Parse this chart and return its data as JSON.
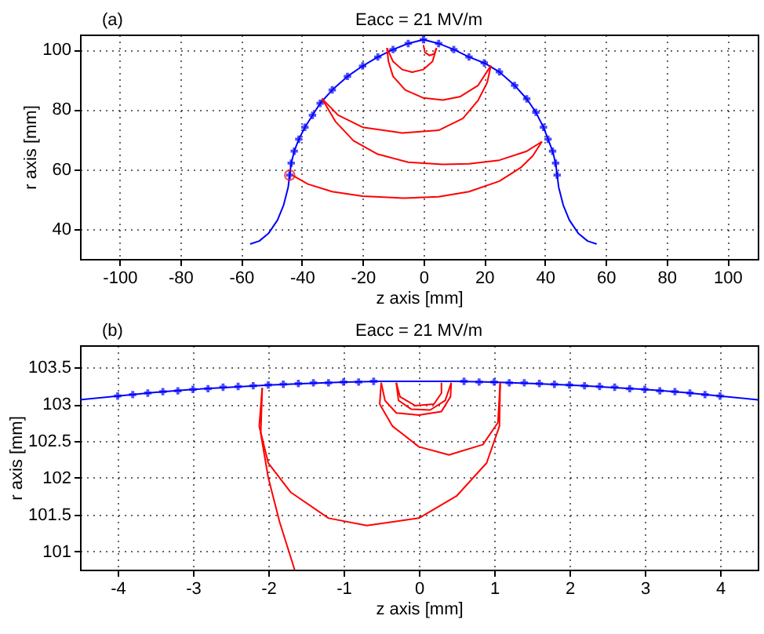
{
  "chart_data": [
    {
      "type": "line",
      "title": "Eacc = 21 MV/m",
      "xlabel": "z axis [mm]",
      "ylabel": "r axis [mm]",
      "annotations": [
        "(a)"
      ],
      "xlim": [
        -113,
        110
      ],
      "ylim": [
        30,
        105
      ],
      "xticks": [
        -100,
        -80,
        -60,
        -40,
        -20,
        0,
        20,
        40,
        60,
        80,
        100
      ],
      "yticks": [
        40,
        60,
        80,
        100
      ],
      "grid": true,
      "series": [
        {
          "type": "line",
          "color": "#0000ff",
          "x": [
            -57,
            -54,
            -51,
            -48,
            -46,
            -44.5,
            -44,
            -43.5,
            -42.5,
            -41,
            -39,
            -36.5,
            -34,
            -30,
            -25,
            -20,
            -15,
            -10,
            -5,
            0,
            5,
            10,
            15,
            20,
            25,
            30,
            34,
            37,
            39.5,
            41,
            42.5,
            43.5,
            44,
            44.5,
            46,
            48,
            51,
            54,
            57
          ],
          "values": [
            35,
            36,
            38.5,
            43,
            48,
            54,
            58,
            62,
            66,
            70,
            74,
            78,
            82,
            86.5,
            91,
            94.5,
            97.5,
            100,
            102,
            103.3,
            102,
            100,
            97.5,
            95.5,
            92.5,
            88,
            83.5,
            79,
            74,
            70,
            66,
            62,
            58,
            54,
            48,
            43,
            38.5,
            36,
            35
          ]
        },
        {
          "type": "scatter",
          "color": "#0000ff",
          "marker": "cross",
          "x": [
            -44,
            -43.5,
            -42.5,
            -41,
            -39,
            -36.5,
            -34,
            -30,
            -25,
            -20,
            -15,
            -10,
            -5,
            0,
            5,
            10,
            15,
            20,
            25,
            30,
            34,
            37,
            39.5,
            41,
            42.5,
            43.5,
            44
          ],
          "values": [
            58,
            62,
            66,
            70,
            74,
            78,
            82,
            86.5,
            91,
            94.5,
            97.5,
            100,
            102,
            103.3,
            102,
            100,
            97.5,
            95.5,
            92.5,
            88,
            83.5,
            79,
            74,
            70,
            66,
            62,
            58
          ]
        },
        {
          "type": "line",
          "color": "#ff0000",
          "x": [
            -43,
            -38,
            -30,
            -20,
            -6.2,
            5,
            15,
            25,
            32,
            36,
            39
          ],
          "values": [
            57.9,
            55,
            52.5,
            51,
            50.3,
            50.8,
            52.5,
            56,
            60.5,
            64.5,
            69.2
          ]
        },
        {
          "type": "line",
          "color": "#ff0000",
          "x": [
            39,
            34,
            25,
            15,
            6.4,
            -5,
            -15,
            -23,
            -29,
            -33.4
          ],
          "values": [
            69.2,
            66,
            63,
            61.8,
            61.6,
            62.3,
            65,
            69.5,
            76,
            83.6
          ]
        },
        {
          "type": "line",
          "color": "#ff0000",
          "x": [
            -33.4,
            -28,
            -20,
            -7,
            5,
            13,
            18,
            21,
            22.2
          ],
          "values": [
            83.6,
            78,
            74,
            72.1,
            73,
            77,
            83,
            89,
            94.6
          ]
        },
        {
          "type": "line",
          "color": "#ff0000",
          "x": [
            22.2,
            18,
            12,
            6.4,
            0,
            -6,
            -10,
            -11.5,
            -12
          ],
          "values": [
            94.6,
            88,
            84.2,
            83.1,
            83.8,
            86.5,
            91,
            96,
            100.5
          ]
        },
        {
          "type": "line",
          "color": "#ff0000",
          "x": [
            -12,
            -10,
            -7,
            -3.7,
            0,
            3,
            4.3
          ],
          "values": [
            100.5,
            96,
            93.3,
            92.4,
            93.3,
            96,
            100.5
          ]
        },
        {
          "type": "line",
          "color": "#ff0000",
          "x": [
            4.3,
            3.5,
            2,
            0.5,
            0
          ],
          "values": [
            100.5,
            98.5,
            98,
            99,
            101.5
          ]
        },
        {
          "type": "scatter",
          "color": "#ff0000",
          "marker": "circle",
          "x": [
            -44
          ],
          "values": [
            58
          ]
        }
      ]
    },
    {
      "type": "line",
      "title": "Eacc = 21 MV/m",
      "xlabel": "z axis [mm]",
      "ylabel": "r axis [mm]",
      "annotations": [
        "(b)"
      ],
      "xlim": [
        -4.5,
        4.5
      ],
      "ylim": [
        100.75,
        103.8
      ],
      "xticks": [
        -4,
        -3,
        -2,
        -1,
        0,
        1,
        2,
        3,
        4
      ],
      "yticks": [
        101,
        101.5,
        102,
        102.5,
        103,
        103.5
      ],
      "grid": true,
      "series": [
        {
          "type": "line",
          "color": "#0000ff",
          "x": [
            -4.5,
            -4,
            -3.5,
            -3,
            -2.5,
            -2,
            -1.5,
            -1,
            -0.5,
            0,
            0.5,
            1,
            1.5,
            2,
            2.5,
            3,
            3.5,
            4,
            4.5
          ],
          "values": [
            103.06,
            103.11,
            103.16,
            103.2,
            103.23,
            103.26,
            103.28,
            103.3,
            103.31,
            103.31,
            103.31,
            103.3,
            103.28,
            103.26,
            103.23,
            103.2,
            103.16,
            103.11,
            103.06
          ]
        },
        {
          "type": "scatter",
          "color": "#0000ff",
          "marker": "cross",
          "x": [
            -4,
            -3.8,
            -3.6,
            -3.4,
            -3.2,
            -3,
            -2.8,
            -2.6,
            -2.4,
            -2.2,
            -2,
            -1.8,
            -1.6,
            -1.4,
            -1.2,
            -1,
            -0.8,
            -0.6,
            0.6,
            0.8,
            1,
            1.2,
            1.4,
            1.6,
            1.8,
            2,
            2.2,
            2.4,
            2.6,
            2.8,
            3,
            3.2,
            3.4,
            3.6,
            3.8,
            4
          ],
          "values": [
            103.11,
            103.13,
            103.15,
            103.17,
            103.18,
            103.2,
            103.21,
            103.23,
            103.24,
            103.25,
            103.26,
            103.27,
            103.28,
            103.29,
            103.29,
            103.3,
            103.3,
            103.31,
            103.31,
            103.3,
            103.3,
            103.29,
            103.29,
            103.28,
            103.27,
            103.26,
            103.25,
            103.24,
            103.23,
            103.21,
            103.2,
            103.18,
            103.17,
            103.15,
            103.13,
            103.11
          ]
        },
        {
          "type": "line",
          "color": "#ff0000",
          "x": [
            -1.65,
            -1.85,
            -2,
            -2.1,
            -2.08
          ],
          "values": [
            100.75,
            101.4,
            102,
            102.6,
            103.22
          ]
        },
        {
          "type": "line",
          "color": "#ff0000",
          "x": [
            -2.08,
            -2.12,
            -2,
            -1.7,
            -1.2,
            -0.69,
            0,
            0.5,
            0.9,
            1.07,
            1.08
          ],
          "values": [
            103.22,
            102.7,
            102.2,
            101.8,
            101.45,
            101.35,
            101.45,
            101.75,
            102.2,
            102.7,
            103.29
          ]
        },
        {
          "type": "line",
          "color": "#ff0000",
          "x": [
            1.08,
            1.05,
            0.85,
            0.4,
            0,
            -0.35,
            -0.52,
            -0.5
          ],
          "values": [
            103.29,
            102.75,
            102.45,
            102.31,
            102.42,
            102.7,
            103,
            103.29
          ]
        },
        {
          "type": "line",
          "color": "#ff0000",
          "x": [
            -0.5,
            -0.45,
            -0.3,
            0,
            0.3,
            0.42,
            0.43
          ],
          "values": [
            103.29,
            103.05,
            102.88,
            102.85,
            102.9,
            103.1,
            103.29
          ]
        },
        {
          "type": "line",
          "color": "#ff0000",
          "x": [
            0.43,
            0.35,
            0.15,
            -0.1,
            -0.27,
            -0.3
          ],
          "values": [
            103.29,
            103.05,
            102.92,
            102.93,
            103.05,
            103.29
          ]
        },
        {
          "type": "line",
          "color": "#ff0000",
          "x": [
            -0.3,
            -0.25,
            -0.05,
            0.2,
            0.3,
            0.3
          ],
          "values": [
            103.29,
            103.1,
            102.98,
            103,
            103.15,
            103.29
          ]
        }
      ]
    }
  ]
}
